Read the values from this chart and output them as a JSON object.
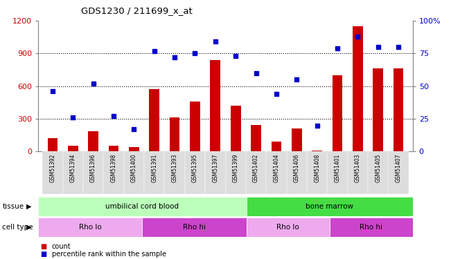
{
  "title": "GDS1230 / 211699_x_at",
  "samples": [
    "GSM51392",
    "GSM51394",
    "GSM51396",
    "GSM51398",
    "GSM51400",
    "GSM51391",
    "GSM51393",
    "GSM51395",
    "GSM51397",
    "GSM51399",
    "GSM51402",
    "GSM51404",
    "GSM51406",
    "GSM51408",
    "GSM51401",
    "GSM51403",
    "GSM51405",
    "GSM51407"
  ],
  "counts": [
    120,
    55,
    185,
    55,
    40,
    570,
    310,
    460,
    840,
    420,
    245,
    90,
    210,
    10,
    700,
    1150,
    760,
    760
  ],
  "percentiles": [
    46,
    26,
    52,
    27,
    17,
    77,
    72,
    75,
    84,
    73,
    60,
    44,
    55,
    20,
    79,
    88,
    80,
    80
  ],
  "ylim_left": [
    0,
    1200
  ],
  "ylim_right": [
    0,
    100
  ],
  "yticks_left": [
    0,
    300,
    600,
    900,
    1200
  ],
  "yticks_right": [
    0,
    25,
    50,
    75,
    100
  ],
  "bar_color": "#cc0000",
  "scatter_color": "#0000cc",
  "tissue_groups": [
    {
      "label": "umbilical cord blood",
      "start": 0,
      "end": 10,
      "color": "#bbffbb"
    },
    {
      "label": "bone marrow",
      "start": 10,
      "end": 18,
      "color": "#44dd44"
    }
  ],
  "cell_type_groups": [
    {
      "label": "Rho lo",
      "start": 0,
      "end": 5,
      "color": "#eeaaee"
    },
    {
      "label": "Rho hi",
      "start": 5,
      "end": 10,
      "color": "#cc44cc"
    },
    {
      "label": "Rho lo",
      "start": 10,
      "end": 14,
      "color": "#eeaaee"
    },
    {
      "label": "Rho hi",
      "start": 14,
      "end": 18,
      "color": "#cc44cc"
    }
  ],
  "legend_count_color": "#cc0000",
  "legend_pct_color": "#0000cc",
  "background_color": "#ffffff",
  "tick_label_color_left": "#cc0000",
  "tick_label_color_right": "#0000cc"
}
